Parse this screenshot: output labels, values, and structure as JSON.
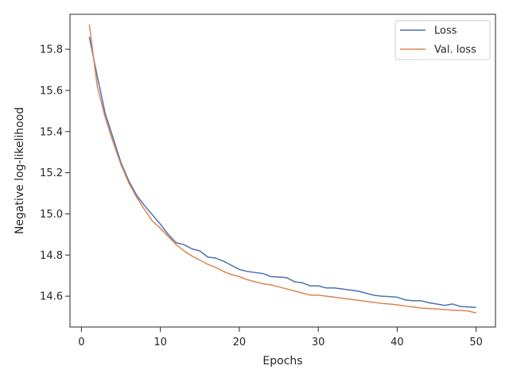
{
  "chart_data": {
    "type": "line",
    "xlabel": "Epochs",
    "ylabel": "Negative log-likelihood",
    "xlim": [
      -1.45,
      52.45
    ],
    "ylim": [
      14.45,
      15.97
    ],
    "xticks": [
      0,
      10,
      20,
      30,
      40,
      50
    ],
    "yticks": [
      14.6,
      14.8,
      15.0,
      15.2,
      15.4,
      15.6,
      15.8
    ],
    "ytick_labels": [
      "14.6",
      "14.8",
      "15.0",
      "15.2",
      "15.4",
      "15.6",
      "15.8"
    ],
    "grid": false,
    "legend_position": "top-right",
    "x": [
      1,
      2,
      3,
      4,
      5,
      6,
      7,
      8,
      9,
      10,
      11,
      12,
      13,
      14,
      15,
      16,
      17,
      18,
      19,
      20,
      21,
      22,
      23,
      24,
      25,
      26,
      27,
      28,
      29,
      30,
      31,
      32,
      33,
      34,
      35,
      36,
      37,
      38,
      39,
      40,
      41,
      42,
      43,
      44,
      45,
      46,
      47,
      48,
      49,
      50
    ],
    "series": [
      {
        "name": "Loss",
        "color": "#4c72b0",
        "values": [
          15.86,
          15.67,
          15.49,
          15.37,
          15.25,
          15.16,
          15.09,
          15.04,
          14.995,
          14.95,
          14.9,
          14.86,
          14.85,
          14.83,
          14.82,
          14.79,
          14.785,
          14.77,
          14.75,
          14.73,
          14.72,
          14.715,
          14.71,
          14.695,
          14.693,
          14.69,
          14.67,
          14.665,
          14.65,
          14.65,
          14.64,
          14.64,
          14.635,
          14.63,
          14.625,
          14.615,
          14.605,
          14.6,
          14.598,
          14.595,
          14.582,
          14.578,
          14.578,
          14.568,
          14.562,
          14.555,
          14.562,
          14.55,
          14.548,
          14.545
        ]
      },
      {
        "name": "Val. loss",
        "color": "#dd8452",
        "values": [
          15.92,
          15.62,
          15.47,
          15.35,
          15.24,
          15.15,
          15.08,
          15.02,
          14.965,
          14.93,
          14.89,
          14.85,
          14.82,
          14.795,
          14.775,
          14.755,
          14.74,
          14.72,
          14.705,
          14.695,
          14.68,
          14.67,
          14.66,
          14.655,
          14.645,
          14.635,
          14.625,
          14.615,
          14.605,
          14.605,
          14.6,
          14.595,
          14.59,
          14.585,
          14.58,
          14.575,
          14.57,
          14.565,
          14.562,
          14.558,
          14.552,
          14.548,
          14.542,
          14.54,
          14.538,
          14.535,
          14.532,
          14.53,
          14.528,
          14.518
        ]
      }
    ]
  }
}
